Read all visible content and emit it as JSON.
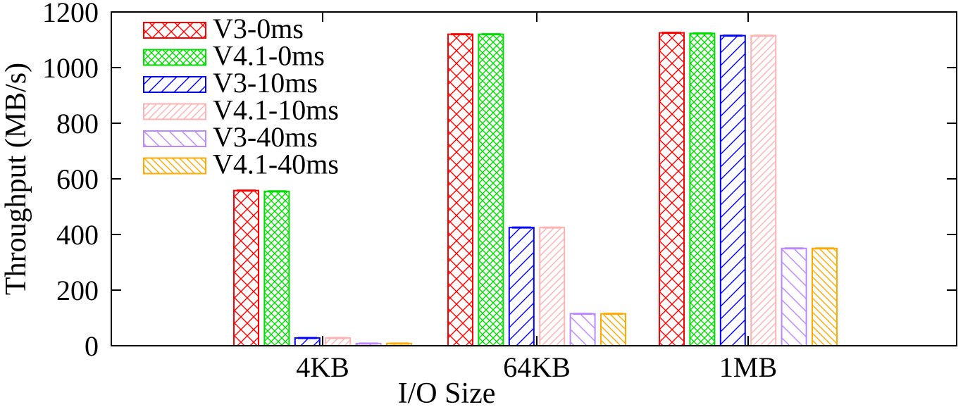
{
  "chart_data": {
    "type": "bar",
    "xlabel": "I/O Size",
    "ylabel": "Throughput (MB/s)",
    "ylim": [
      0,
      1200
    ],
    "yticks": [
      0,
      200,
      400,
      600,
      800,
      1000,
      1200
    ],
    "categories": [
      "4KB",
      "64KB",
      "1MB"
    ],
    "legend_position": "top-left",
    "grid": false,
    "series": [
      {
        "name": "V3-0ms",
        "color": "#ff0000",
        "pattern": "crosshatch",
        "values": [
          558,
          1120,
          1125
        ]
      },
      {
        "name": "V4.1-0ms",
        "color": "#00dd00",
        "pattern": "crosshatch-fine",
        "values": [
          555,
          1120,
          1123
        ]
      },
      {
        "name": "V3-10ms",
        "color": "#0000ff",
        "pattern": "diagonal",
        "values": [
          28,
          425,
          1115
        ]
      },
      {
        "name": "V4.1-10ms",
        "color": "#ffb3b3",
        "pattern": "diagonal-fine",
        "values": [
          28,
          425,
          1115
        ]
      },
      {
        "name": "V3-40ms",
        "color": "#bb88ff",
        "pattern": "back-diagonal",
        "values": [
          8,
          115,
          350
        ]
      },
      {
        "name": "V4.1-40ms",
        "color": "#ffaa00",
        "pattern": "back-diagonal-fine",
        "values": [
          8,
          115,
          350
        ]
      }
    ]
  }
}
